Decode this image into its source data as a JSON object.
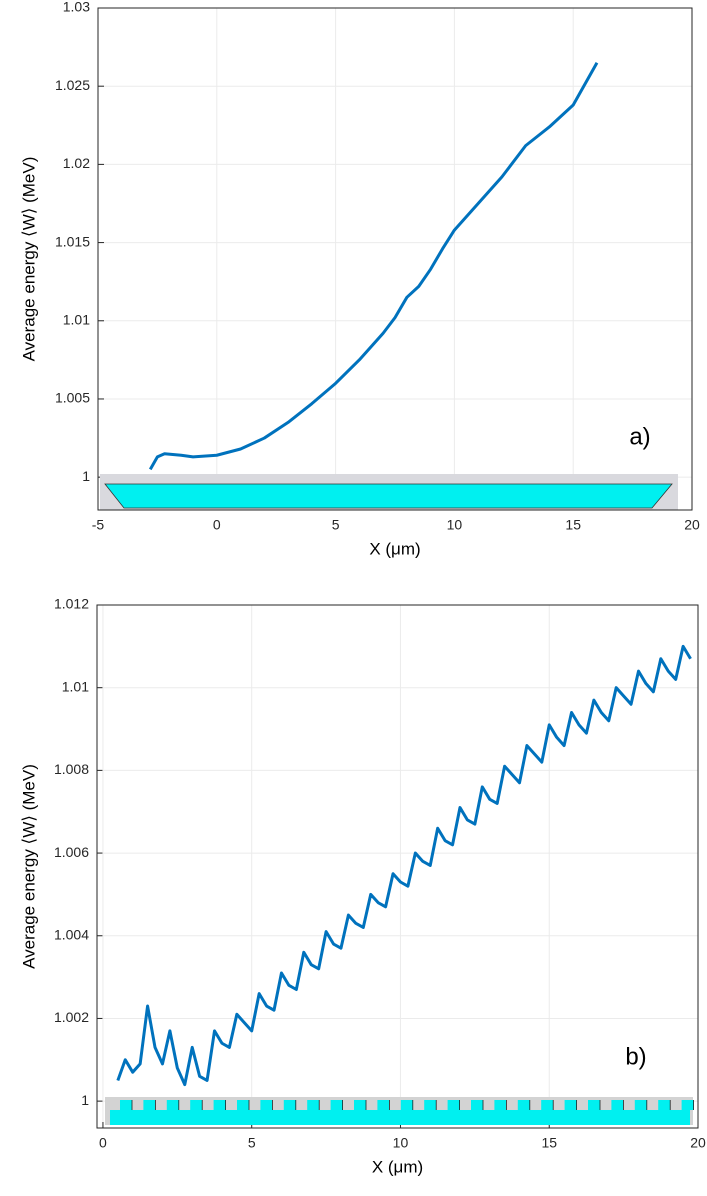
{
  "chart_data": [
    {
      "type": "line",
      "annotation": "a)",
      "x_label": "X (μm)",
      "y_label": "Average energy  ⟨W⟩ (MeV)",
      "xlim": [
        -5,
        20
      ],
      "xticks": [
        -5,
        0,
        5,
        10,
        15,
        20
      ],
      "ylim": [
        0.9979,
        1.03
      ],
      "yticks": [
        1,
        1.005,
        1.01,
        1.015,
        1.02,
        1.025,
        1.03
      ],
      "grid": true,
      "series": [
        {
          "color": "#0072bd",
          "x": [
            -2.8,
            -2.5,
            -2.2,
            -1.5,
            -1,
            0,
            1,
            2,
            3,
            4,
            5,
            6,
            7,
            7.5,
            8,
            8.5,
            9,
            9.5,
            10,
            11,
            12,
            13,
            14,
            15,
            16
          ],
          "values": [
            1.0005,
            1.0013,
            1.0015,
            1.0014,
            1.0013,
            1.0014,
            1.0018,
            1.0025,
            1.0035,
            1.0047,
            1.006,
            1.0075,
            1.0092,
            1.0102,
            1.0115,
            1.0122,
            1.0133,
            1.0146,
            1.0158,
            1.0175,
            1.0192,
            1.0212,
            1.0224,
            1.0238,
            1.0265
          ]
        }
      ]
    },
    {
      "type": "line",
      "annotation": "b)",
      "x_label": "X (μm)",
      "y_label": "Average energy  ⟨W⟩ (MeV)",
      "xlim": [
        -0.2,
        20
      ],
      "xticks": [
        0,
        5,
        10,
        15,
        20
      ],
      "ylim": [
        0.99935,
        1.012
      ],
      "yticks": [
        1,
        1.002,
        1.004,
        1.006,
        1.008,
        1.01,
        1.012
      ],
      "grid": true,
      "series": [
        {
          "color": "#0072bd",
          "x": [
            0.5,
            0.75,
            1,
            1.25,
            1.5,
            1.75,
            2,
            2.25,
            2.5,
            2.75,
            3,
            3.25,
            3.5,
            3.75,
            4,
            4.25,
            4.5,
            4.75,
            5,
            5.25,
            5.5,
            5.75,
            6,
            6.25,
            6.5,
            6.75,
            7,
            7.25,
            7.5,
            7.75,
            8,
            8.25,
            8.5,
            8.75,
            9,
            9.25,
            9.5,
            9.75,
            10,
            10.25,
            10.5,
            10.75,
            11,
            11.25,
            11.5,
            11.75,
            12,
            12.25,
            12.5,
            12.75,
            13,
            13.25,
            13.5,
            13.75,
            14,
            14.25,
            14.5,
            14.75,
            15,
            15.25,
            15.5,
            15.75,
            16,
            16.25,
            16.5,
            16.75,
            17,
            17.25,
            17.5,
            17.75,
            18,
            18.25,
            18.5,
            18.75,
            19,
            19.25,
            19.5,
            19.75
          ],
          "values": [
            1.0005,
            1.001,
            1.0007,
            1.0009,
            1.0023,
            1.0013,
            1.0009,
            1.0017,
            1.0008,
            1.0004,
            1.0013,
            1.0006,
            1.0005,
            1.0017,
            1.0014,
            1.0013,
            1.0021,
            1.0019,
            1.0017,
            1.0026,
            1.0023,
            1.0022,
            1.0031,
            1.0028,
            1.0027,
            1.0036,
            1.0033,
            1.0032,
            1.0041,
            1.0038,
            1.0037,
            1.0045,
            1.0043,
            1.0042,
            1.005,
            1.0048,
            1.0047,
            1.0055,
            1.0053,
            1.0052,
            1.006,
            1.0058,
            1.0057,
            1.0066,
            1.0063,
            1.0062,
            1.0071,
            1.0068,
            1.0067,
            1.0076,
            1.0073,
            1.0072,
            1.0081,
            1.0079,
            1.0077,
            1.0086,
            1.0084,
            1.0082,
            1.0091,
            1.0088,
            1.0086,
            1.0094,
            1.0091,
            1.0089,
            1.0097,
            1.0094,
            1.0092,
            1.01,
            1.0098,
            1.0096,
            1.0104,
            1.0101,
            1.0099,
            1.0107,
            1.0104,
            1.0102,
            1.011,
            1.0107
          ]
        }
      ]
    }
  ]
}
